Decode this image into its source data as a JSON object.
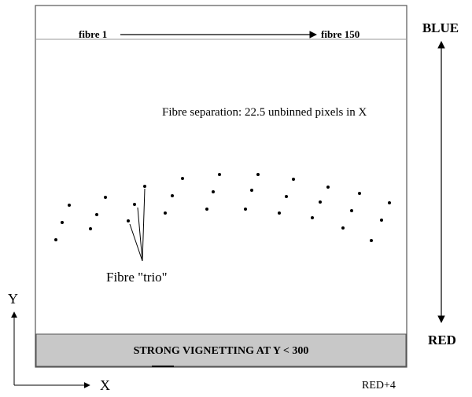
{
  "labels": {
    "fibre_start": "fibre 1",
    "fibre_end": "fibre 150",
    "blue": "BLUE",
    "red": "RED",
    "separation_note": "Fibre separation: 22.5 unbinned pixels in X",
    "trio": "Fibre \"trio\"",
    "vignetting": "STRONG VIGNETTING AT Y < 300",
    "axis_y": "Y",
    "axis_x": "X",
    "footer": "RED+4"
  },
  "colors": {
    "frame": "#555555",
    "vignetting_fill": "#c8c8c8",
    "dot": "#000000"
  },
  "dot_count": 33
}
